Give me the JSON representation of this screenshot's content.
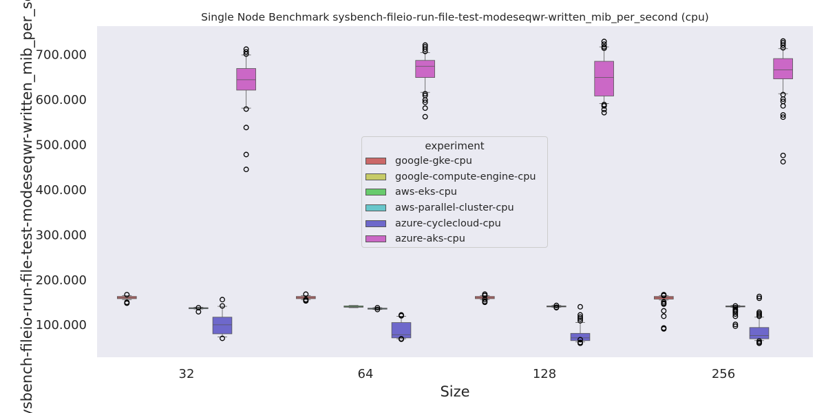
{
  "chart_data": {
    "type": "box",
    "title": "Single Node Benchmark sysbench-fileio-run-file-test-modeseqwr-written_mib_per_second (cpu)",
    "xlabel": "Size",
    "ylabel": "sysbench-fileio-run-file-test-modeseqwr-written_mib_per_second",
    "categories": [
      "32",
      "64",
      "128",
      "256"
    ],
    "ylim": [
      27,
      762
    ],
    "yticks": [
      100,
      200,
      300,
      400,
      500,
      600,
      700
    ],
    "ytick_labels": [
      "100.000",
      "200.000",
      "300.000",
      "400.000",
      "500.000",
      "600.000",
      "700.000"
    ],
    "grid": false,
    "legend_title": "experiment",
    "legend_position": "center",
    "series": [
      {
        "name": "google-gke-cpu",
        "color": "#cb6868",
        "boxes": [
          {
            "category": "32",
            "q1": 157,
            "median": 159,
            "q3": 162,
            "whislo": 155,
            "whishi": 164,
            "fliers": [
              166,
              147,
              149
            ]
          },
          {
            "category": "64",
            "q1": 157,
            "median": 159,
            "q3": 162,
            "whislo": 155,
            "whishi": 164,
            "fliers": [
              167,
              155,
              153,
              152
            ]
          },
          {
            "category": "128",
            "q1": 157,
            "median": 159,
            "q3": 162,
            "whislo": 155,
            "whishi": 164,
            "fliers": [
              167,
              164,
              155,
              151,
              149
            ]
          },
          {
            "category": "256",
            "q1": 156,
            "median": 159,
            "q3": 162,
            "whislo": 154,
            "whishi": 164,
            "fliers": [
              166,
              164,
              150,
              147,
              145,
              130,
              118,
              92,
              90
            ]
          }
        ]
      },
      {
        "name": "google-compute-engine-cpu",
        "color": "#c7cb68",
        "boxes": []
      },
      {
        "name": "aws-eks-cpu",
        "color": "#68cb6d",
        "boxes": [
          {
            "category": "64",
            "q1": 138,
            "median": 139,
            "q3": 141,
            "whislo": 137,
            "whishi": 142,
            "fliers": []
          }
        ]
      },
      {
        "name": "aws-parallel-cluster-cpu",
        "color": "#68c6cb",
        "boxes": [
          {
            "category": "32",
            "q1": 135,
            "median": 136,
            "q3": 137,
            "whislo": 134,
            "whishi": 138,
            "fliers": [
              137,
              128
            ]
          },
          {
            "category": "64",
            "q1": 134,
            "median": 135,
            "q3": 136,
            "whislo": 133,
            "whishi": 137,
            "fliers": [
              137,
              133
            ]
          },
          {
            "category": "128",
            "q1": 139,
            "median": 140,
            "q3": 141,
            "whislo": 138,
            "whishi": 142,
            "fliers": [
              142,
              138,
              137
            ]
          },
          {
            "category": "256",
            "q1": 139,
            "median": 140,
            "q3": 141,
            "whislo": 138,
            "whishi": 142,
            "fliers": [
              141,
              137,
              133,
              130,
              127,
              123,
              118,
              100,
              96
            ]
          }
        ]
      },
      {
        "name": "azure-cyclecloud-cpu",
        "color": "#6e68cb",
        "boxes": [
          {
            "category": "32",
            "q1": 79,
            "median": 99,
            "q3": 116,
            "whislo": 72,
            "whishi": 140,
            "fliers": [
              155,
              141,
              69
            ]
          },
          {
            "category": "64",
            "q1": 70,
            "median": 77,
            "q3": 104,
            "whislo": 68,
            "whishi": 118,
            "fliers": [
              121,
              119,
              68,
              67
            ]
          },
          {
            "category": "128",
            "q1": 64,
            "median": 70,
            "q3": 80,
            "whislo": 61,
            "whishi": 104,
            "fliers": [
              139,
              121,
              116,
              112,
              108,
              60,
              58,
              66
            ]
          },
          {
            "category": "256",
            "q1": 68,
            "median": 75,
            "q3": 93,
            "whislo": 64,
            "whishi": 116,
            "fliers": [
              162,
              158,
              127,
              124,
              121,
              118,
              63,
              60,
              58
            ]
          }
        ]
      },
      {
        "name": "azure-aks-cpu",
        "color": "#cb68c6",
        "boxes": [
          {
            "category": "32",
            "q1": 620,
            "median": 643,
            "q3": 668,
            "whislo": 580,
            "whishi": 698,
            "fliers": [
              711,
              705,
              700,
              578,
              537,
              477,
              444
            ]
          },
          {
            "category": "64",
            "q1": 648,
            "median": 673,
            "q3": 686,
            "whislo": 615,
            "whishi": 703,
            "fliers": [
              720,
              716,
              711,
              706,
              612,
              608,
              598,
              593,
              580,
              561
            ]
          },
          {
            "category": "128",
            "q1": 607,
            "median": 648,
            "q3": 684,
            "whislo": 590,
            "whishi": 716,
            "fliers": [
              728,
              722,
              716,
              713,
              588,
              585,
              577,
              570
            ]
          },
          {
            "category": "256",
            "q1": 645,
            "median": 665,
            "q3": 690,
            "whislo": 612,
            "whishi": 712,
            "fliers": [
              729,
              725,
              720,
              714,
              610,
              600,
              595,
              585,
              565,
              560,
              475,
              461
            ]
          }
        ]
      }
    ]
  }
}
